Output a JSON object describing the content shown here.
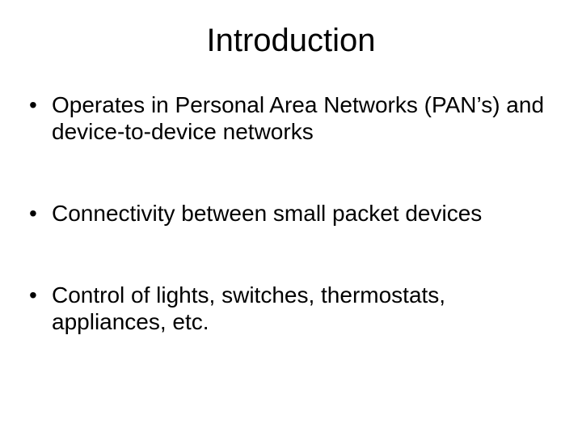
{
  "title": "Introduction",
  "title_fontsize": 40,
  "body_fontsize": 28,
  "text_color": "#000000",
  "background_color": "#ffffff",
  "bullets": [
    "Operates in Personal Area Networks (PAN’s) and device-to-device networks",
    "Connectivity between small packet devices",
    "Control of lights, switches, thermostats, appliances, etc."
  ]
}
